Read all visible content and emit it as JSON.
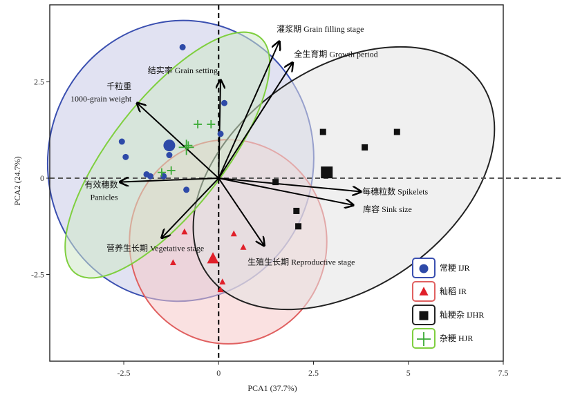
{
  "chart_data": {
    "type": "scatter",
    "title": "",
    "xlabel": "PCA1 (37.7%)",
    "ylabel": "PCA2 (24.7%)",
    "xlim": [
      -4.45,
      7.5
    ],
    "ylim": [
      -4.75,
      4.5
    ],
    "xticks": [
      {
        "value": -2.5,
        "label": "-2.5"
      },
      {
        "value": 0,
        "label": "0"
      },
      {
        "value": 2.5,
        "label": "2.5"
      },
      {
        "value": 5,
        "label": "5"
      },
      {
        "value": 7.5,
        "label": "7.5"
      }
    ],
    "yticks": [
      {
        "value": 2.5,
        "label": "2.5"
      },
      {
        "value": 0,
        "label": "0"
      },
      {
        "value": -2.5,
        "label": "-2.5"
      }
    ],
    "reference_lines": {
      "x": 0,
      "y": 0,
      "style": "dashed"
    },
    "series": [
      {
        "name": "常粳 IJR",
        "marker": "circle",
        "color": "#2e4aa8",
        "fill": "#c8cbe8",
        "edge": "#3a4fb0",
        "ellipse": {
          "cx": -1.0,
          "cy": 0.45,
          "rx": 3.5,
          "ry": 3.65,
          "angle": -10
        },
        "centroid": [
          -1.3,
          0.85
        ],
        "points": [
          [
            -0.95,
            3.4
          ],
          [
            -2.55,
            0.95
          ],
          [
            -2.45,
            0.55
          ],
          [
            0.15,
            1.95
          ],
          [
            0.05,
            1.15
          ],
          [
            -1.3,
            0.6
          ],
          [
            -1.9,
            0.1
          ],
          [
            -1.8,
            0.05
          ],
          [
            -1.45,
            0.05
          ],
          [
            -0.85,
            -0.3
          ]
        ]
      },
      {
        "name": "籼稻 IR",
        "marker": "triangle",
        "color": "#e0202a",
        "fill": "#f6c9c9",
        "edge": "#e06060",
        "ellipse": {
          "cx": 0.25,
          "cy": -1.65,
          "rx": 2.6,
          "ry": 2.65,
          "angle": 0
        },
        "centroid": [
          -0.15,
          -2.1
        ],
        "points": [
          [
            -0.9,
            -1.4
          ],
          [
            0.4,
            -1.45
          ],
          [
            0.65,
            -1.8
          ],
          [
            -1.2,
            -2.2
          ],
          [
            0.1,
            -2.7
          ],
          [
            0.05,
            -2.9
          ]
        ]
      },
      {
        "name": "籼粳杂 IJHR",
        "marker": "square",
        "color": "#111111",
        "fill": "#e4e4e4",
        "edge": "#222222",
        "ellipse": {
          "cx": 3.3,
          "cy": 0.0,
          "rx": 4.4,
          "ry": 2.85,
          "angle": 35
        },
        "centroid": [
          2.85,
          0.15
        ],
        "points": [
          [
            2.75,
            1.2
          ],
          [
            4.7,
            1.2
          ],
          [
            3.85,
            0.8
          ],
          [
            1.5,
            -0.1
          ],
          [
            2.05,
            -0.85
          ],
          [
            2.1,
            -1.25
          ]
        ]
      },
      {
        "name": "杂粳 HJR",
        "marker": "plus",
        "color": "#3aaa35",
        "fill": "#cfe8c9",
        "edge": "#7fcf3f",
        "ellipse": {
          "cx": -1.35,
          "cy": 0.6,
          "rx": 3.95,
          "ry": 1.45,
          "angle": 52
        },
        "centroid": [
          -0.85,
          0.8
        ],
        "points": [
          [
            -0.55,
            1.4
          ],
          [
            -0.2,
            1.4
          ],
          [
            -0.8,
            0.85
          ],
          [
            -1.25,
            0.2
          ],
          [
            -1.5,
            0.15
          ]
        ]
      }
    ],
    "loadings": [
      {
        "label": "灌浆期 Grain filling stage",
        "x": 1.6,
        "y": 3.55
      },
      {
        "label": "全生育期 Growth period",
        "x": 1.95,
        "y": 3.0
      },
      {
        "label": "结实率 Grain setting",
        "x": 0.05,
        "y": 2.55
      },
      {
        "label": "千粒重 1000-grain weight",
        "x": -2.15,
        "y": 1.95
      },
      {
        "label": "有效穗数 Panicles",
        "x": -2.6,
        "y": -0.1
      },
      {
        "label": "每穗粒数 Spikelets",
        "x": 3.75,
        "y": -0.35
      },
      {
        "label": "库容 Sink size",
        "x": 3.55,
        "y": -0.7
      },
      {
        "label": "营养生长期 Vegetative stage",
        "x": -1.5,
        "y": -1.55
      },
      {
        "label": "生殖生长期 Reproductive stage",
        "x": 1.2,
        "y": -1.75
      }
    ],
    "legend": {
      "position": "bottom-right",
      "entries": [
        "常粳 IJR",
        "籼稻 IR",
        "籼粳杂 IJHR",
        "杂粳 HJR"
      ]
    }
  }
}
